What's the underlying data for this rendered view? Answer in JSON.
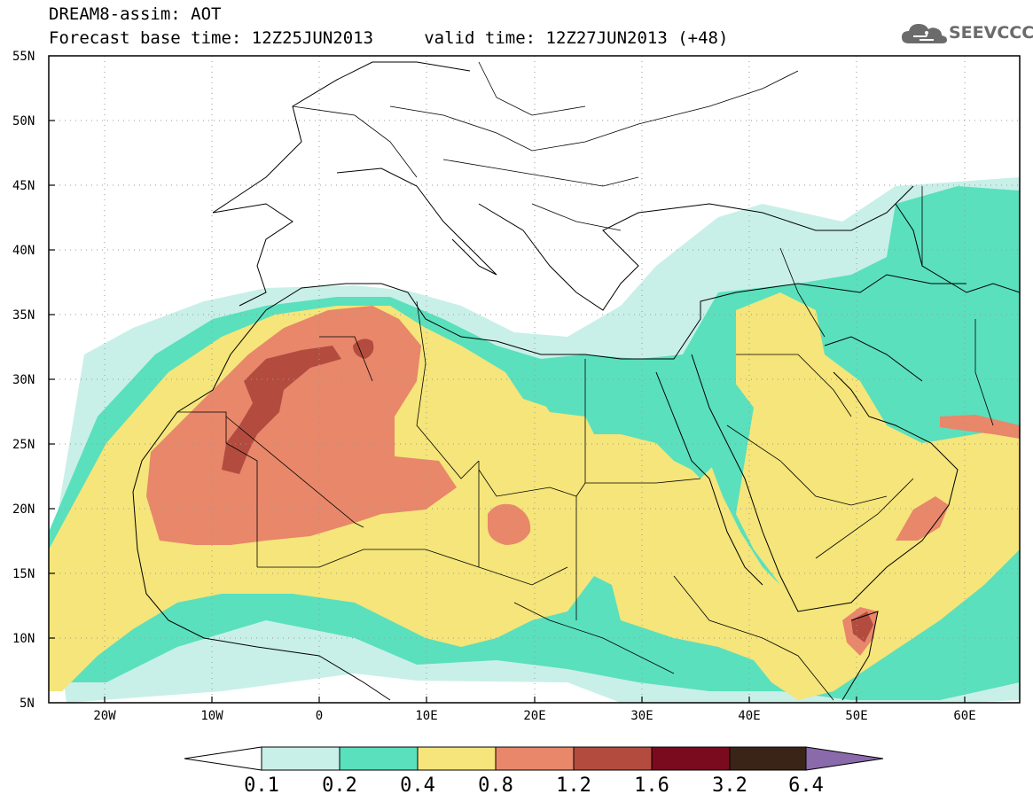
{
  "header": {
    "title_line1": "DREAM8-assim: AOT",
    "title_line2": "Forecast base time: 12Z25JUN2013     valid time: 12Z27JUN2013 (+48)",
    "logo_text": "SEEVCCC",
    "logo_icon": "cloud-icon"
  },
  "map": {
    "lon_range": [
      -25,
      65
    ],
    "lat_range": [
      5,
      55
    ],
    "lat_labels": [
      "55N",
      "50N",
      "45N",
      "40N",
      "35N",
      "30N",
      "25N",
      "20N",
      "15N",
      "10N",
      "5N"
    ],
    "lat_values": [
      55,
      50,
      45,
      40,
      35,
      30,
      25,
      20,
      15,
      10,
      5
    ],
    "lon_labels": [
      "20W",
      "10W",
      "0",
      "10E",
      "20E",
      "30E",
      "40E",
      "50E",
      "60E"
    ],
    "lon_values": [
      -20,
      -10,
      0,
      10,
      20,
      30,
      40,
      50,
      60
    ],
    "gridlines": "dotted"
  },
  "colorbar": {
    "levels": [
      "0.1",
      "0.2",
      "0.4",
      "0.8",
      "1.2",
      "1.6",
      "3.2",
      "6.4"
    ],
    "colors": [
      "#c8f0e8",
      "#5ae0bd",
      "#f5e57a",
      "#e8876a",
      "#b34c3f",
      "#7a0a1e",
      "#3a2418"
    ],
    "under_color": "#ffffff",
    "over_color": "#8a6aaa"
  }
}
